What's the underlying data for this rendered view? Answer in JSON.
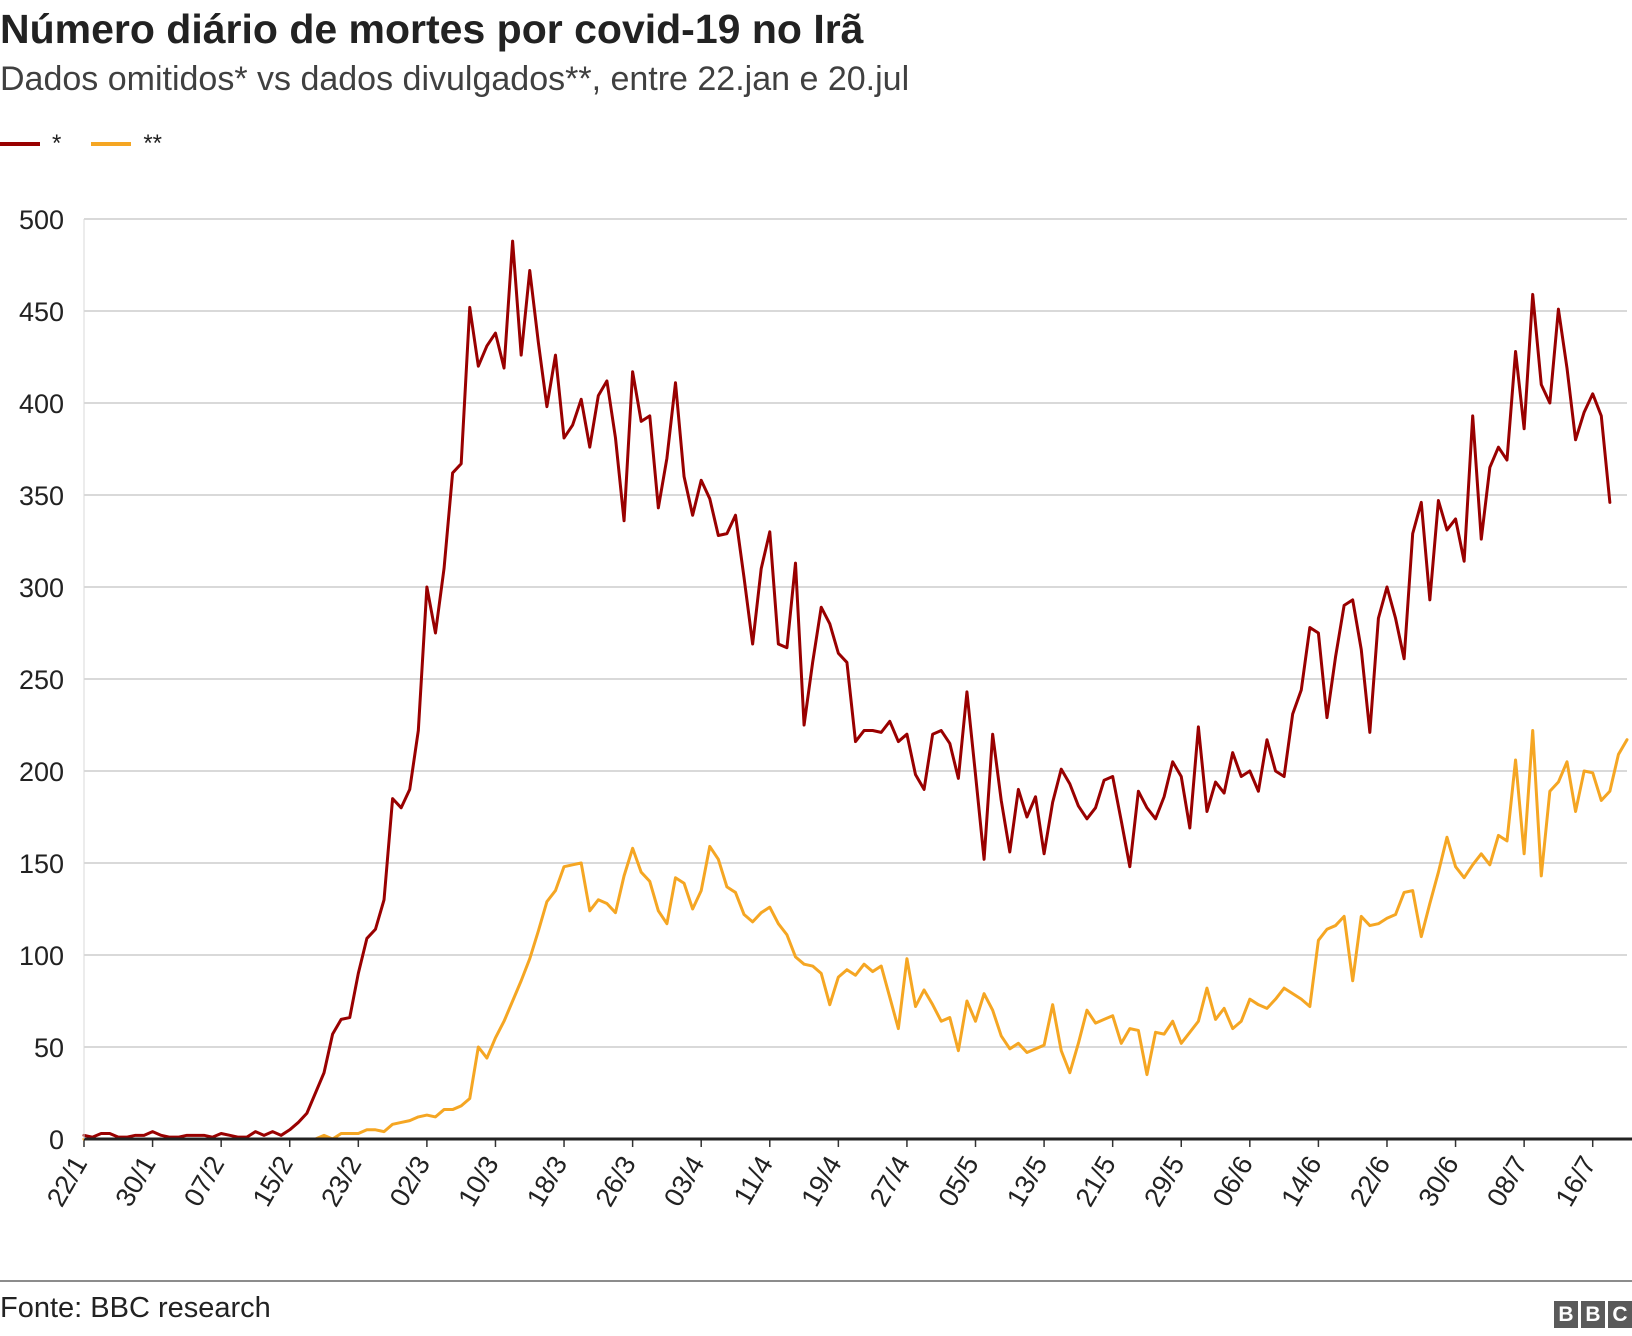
{
  "header": {
    "title": "Número diário de mortes por covid-19 no Irã",
    "subtitle": "Dados omitidos* vs dados divulgados**, entre 22.jan e 20.jul"
  },
  "footer": {
    "source": "Fonte: BBC research",
    "logo": [
      "B",
      "B",
      "C"
    ]
  },
  "chart_data": {
    "type": "line",
    "title": "Número diário de mortes por covid-19 no Irã",
    "subtitle": "Dados omitidos* vs dados divulgados**, entre 22.jan e 20.jul",
    "xlabel": "",
    "ylabel": "",
    "ylim": [
      0,
      500
    ],
    "yticks": [
      0,
      50,
      100,
      150,
      200,
      250,
      300,
      350,
      400,
      450,
      500
    ],
    "xticks": [
      "22/1",
      "30/1",
      "07/2",
      "15/2",
      "23/2",
      "02/3",
      "10/3",
      "18/3",
      "26/3",
      "03/4",
      "11/4",
      "19/4",
      "27/4",
      "05/5",
      "13/5",
      "21/5",
      "29/5",
      "06/6",
      "14/6",
      "22/6",
      "30/6",
      "08/7",
      "16/7"
    ],
    "xrange": [
      "22/1",
      "20/7"
    ],
    "grid": "horizontal",
    "legend_position": "top-left",
    "series": [
      {
        "name": "*",
        "color": "#990000",
        "start": "22/1",
        "values": [
          2,
          1,
          3,
          3,
          1,
          1,
          2,
          2,
          4,
          2,
          1,
          1,
          2,
          2,
          2,
          1,
          3,
          2,
          1,
          1,
          4,
          2,
          4,
          2,
          5,
          9,
          14,
          25,
          36,
          57,
          65,
          66,
          90,
          109,
          114,
          130,
          185,
          180,
          190,
          222,
          300,
          275,
          310,
          362,
          367,
          452,
          420,
          431,
          438,
          419,
          488,
          426,
          472,
          433,
          398,
          426,
          381,
          388,
          402,
          376,
          404,
          412,
          381,
          336,
          417,
          390,
          393,
          343,
          370,
          411,
          360,
          339,
          358,
          348,
          328,
          329,
          339,
          305,
          269,
          310,
          330,
          269,
          267,
          313,
          225,
          259,
          289,
          280,
          264,
          259,
          216,
          222,
          222,
          221,
          227,
          216,
          220,
          198,
          190,
          220,
          222,
          215,
          196,
          243,
          198,
          152,
          220,
          184,
          156,
          190,
          175,
          186,
          155,
          183,
          201,
          193,
          181,
          174,
          180,
          195,
          197,
          173,
          148,
          189,
          180,
          174,
          186,
          205,
          197,
          169,
          224,
          178,
          194,
          188,
          210,
          197,
          200,
          189,
          217,
          200,
          197,
          231,
          244,
          278,
          275,
          229,
          262,
          290,
          293,
          266,
          221,
          283,
          300,
          283,
          261,
          329,
          346,
          293,
          347,
          331,
          337,
          314,
          393,
          326,
          365,
          376,
          369,
          428,
          386,
          459,
          410,
          400,
          451,
          419,
          380,
          395,
          405,
          393,
          346
        ]
      },
      {
        "name": "**",
        "color": "#f5a623",
        "start": "22/1",
        "values": [
          0,
          0,
          0,
          0,
          0,
          0,
          0,
          0,
          0,
          0,
          0,
          0,
          0,
          0,
          0,
          0,
          0,
          0,
          0,
          0,
          0,
          0,
          0,
          0,
          0,
          0,
          0,
          0,
          2,
          0,
          3,
          3,
          3,
          5,
          5,
          4,
          8,
          9,
          10,
          12,
          13,
          12,
          16,
          16,
          18,
          22,
          50,
          44,
          55,
          64,
          75,
          86,
          98,
          113,
          129,
          135,
          148,
          149,
          150,
          124,
          130,
          128,
          123,
          143,
          158,
          145,
          140,
          124,
          117,
          142,
          139,
          125,
          135,
          159,
          152,
          137,
          134,
          122,
          118,
          123,
          126,
          117,
          111,
          99,
          95,
          94,
          90,
          73,
          88,
          92,
          89,
          95,
          91,
          94,
          77,
          60,
          98,
          72,
          81,
          73,
          64,
          66,
          48,
          75,
          64,
          79,
          70,
          56,
          49,
          52,
          47,
          49,
          51,
          73,
          48,
          36,
          52,
          70,
          63,
          65,
          67,
          52,
          60,
          59,
          35,
          58,
          57,
          64,
          52,
          58,
          64,
          82,
          65,
          71,
          60,
          64,
          76,
          73,
          71,
          76,
          82,
          79,
          76,
          72,
          108,
          114,
          116,
          121,
          86,
          121,
          116,
          117,
          120,
          122,
          134,
          135,
          110,
          128,
          145,
          164,
          148,
          142,
          149,
          155,
          149,
          165,
          162,
          206,
          155,
          222,
          143,
          189,
          194,
          205,
          178,
          200,
          199,
          184,
          189,
          209,
          217
        ]
      }
    ]
  }
}
